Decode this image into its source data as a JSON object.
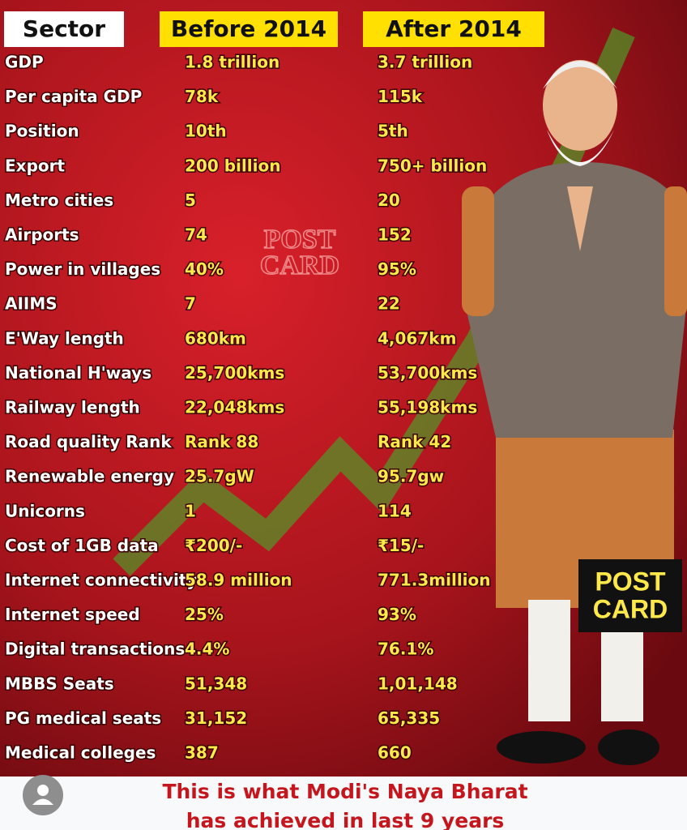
{
  "header": {
    "sector": "Sector",
    "before": "Before 2014",
    "after": "After 2014"
  },
  "table": {
    "rows": [
      [
        "GDP",
        "1.8 trillion",
        "3.7 trillion"
      ],
      [
        "Per capita GDP",
        "78k",
        "115k"
      ],
      [
        "Position",
        "10th",
        "5th"
      ],
      [
        "Export",
        "200 billion",
        "750+ billion"
      ],
      [
        "Metro cities",
        "5",
        "20"
      ],
      [
        "Airports",
        "74",
        "152"
      ],
      [
        "Power in villages",
        "40%",
        "95%"
      ],
      [
        "AIIMS",
        "7",
        "22"
      ],
      [
        "E'Way length",
        "680km",
        "4,067km"
      ],
      [
        "National H'ways",
        "25,700kms",
        "53,700kms"
      ],
      [
        "Railway length",
        "22,048kms",
        "55,198kms"
      ],
      [
        "Road quality Rank",
        "Rank 88",
        "Rank 42"
      ],
      [
        "Renewable energy",
        "25.7gW",
        "95.7gw"
      ],
      [
        "Unicorns",
        "1",
        "114"
      ],
      [
        "Cost of 1GB data",
        "₹200/-",
        "₹15/-"
      ],
      [
        "Internet connectivity",
        "58.9 million",
        "771.3million"
      ],
      [
        "Internet speed",
        "25%",
        "93%"
      ],
      [
        "Digital transactions",
        "4.4%",
        "76.1%"
      ],
      [
        "MBBS Seats",
        "51,348",
        "1,01,148"
      ],
      [
        "PG medical seats",
        "31,152",
        "65,335"
      ],
      [
        "Medical colleges",
        "387",
        "660"
      ]
    ]
  },
  "watermark": {
    "line1": "POST",
    "line2": "CARD"
  },
  "logo": {
    "line1": "POST",
    "line2": "CARD"
  },
  "footer": {
    "line1": "This is what Modi's Naya Bharat",
    "line2": "has achieved in last 9 years"
  }
}
